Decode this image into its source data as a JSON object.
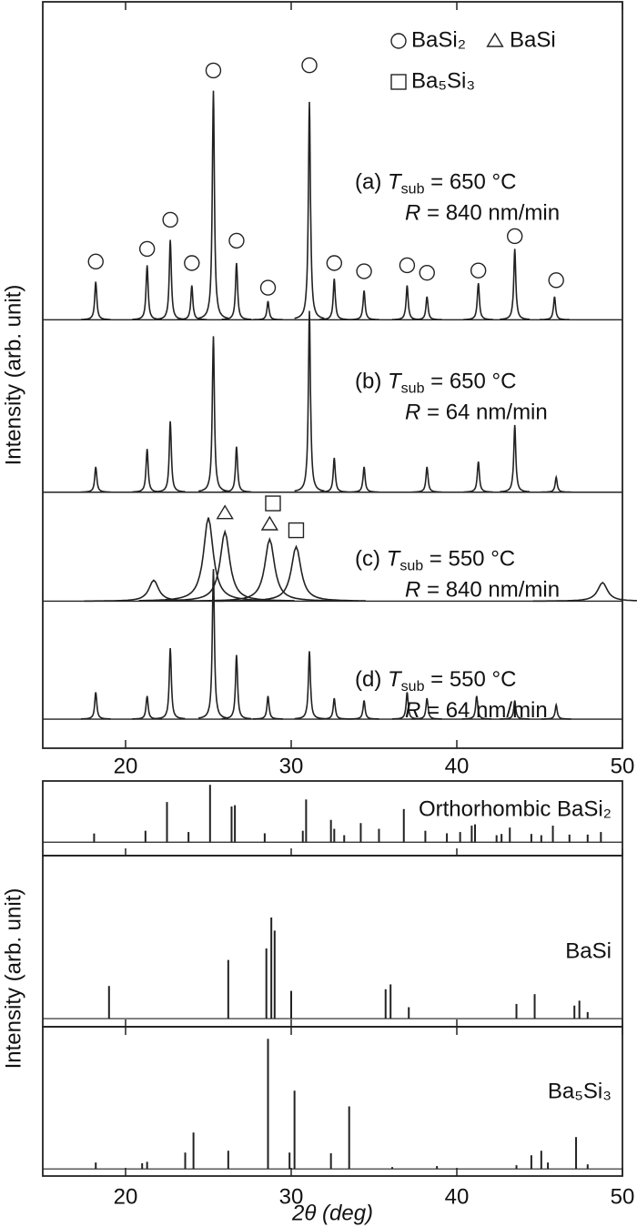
{
  "chart_data": [
    {
      "type": "peaks",
      "ylabel": "Intensity (arb. unit)",
      "xlim": [
        15,
        50
      ],
      "ylim": [
        0,
        100
      ],
      "xticks": [
        20,
        30,
        40,
        50
      ],
      "color": "#222222",
      "legend": [
        {
          "shape": "circle",
          "name": "BaSi₂"
        },
        {
          "shape": "triangle",
          "name": "BaSi"
        },
        {
          "shape": "square",
          "name": "Ba₅Si₃"
        }
      ],
      "series": [
        {
          "label": [
            "(a) ",
            "T",
            "sub",
            " = 650 °C"
          ],
          "label2": [
            "R",
            " = 840 nm/min"
          ],
          "baseline": 57.4,
          "width": 0.15,
          "x": [
            18.2,
            21.3,
            22.7,
            24.0,
            25.3,
            26.7,
            28.6,
            31.1,
            32.6,
            34.4,
            37.0,
            38.2,
            41.3,
            43.5,
            45.9
          ],
          "values": [
            62.5,
            64.7,
            68.1,
            62,
            88.1,
            65,
            59.9,
            86.6,
            62.9,
            61.3,
            62,
            60.5,
            62.3,
            66.9,
            60.5
          ]
        },
        {
          "label": [
            "(b) ",
            "T",
            "sub",
            " = 650 °C"
          ],
          "label2": [
            "R",
            " = 64 nm/min"
          ],
          "baseline": 34.3,
          "width": 0.15,
          "x": [
            18.2,
            21.3,
            22.7,
            25.3,
            26.7,
            31.1,
            32.6,
            34.4,
            38.2,
            41.3,
            43.5,
            46.0
          ],
          "values": [
            37.7,
            40.1,
            43.8,
            55.2,
            40.4,
            58.6,
            38.9,
            37.7,
            37.7,
            38.4,
            43.3,
            36.3
          ]
        },
        {
          "label": [
            "(c) ",
            "T",
            "sub",
            " = 550 °C"
          ],
          "label2": [
            "R",
            " = 840 nm/min"
          ],
          "baseline": 19.7,
          "width": 0.7,
          "x": [
            21.7,
            25.0,
            26.0,
            28.7,
            30.3,
            48.8
          ],
          "values": [
            22.5,
            30.9,
            29,
            28,
            27,
            22.2
          ]
        },
        {
          "label": [
            "(d) ",
            "T",
            "sub",
            " = 550 °C"
          ],
          "label2": [
            "R",
            " = 64 nm/min"
          ],
          "baseline": 3.9,
          "width": 0.15,
          "x": [
            18.2,
            21.3,
            22.7,
            25.3,
            26.7,
            28.6,
            31.1,
            32.6,
            34.4,
            37.0,
            38.2,
            41.2,
            43.5,
            46.0
          ],
          "values": [
            7.5,
            7,
            13.4,
            24,
            12.5,
            7,
            13,
            6.7,
            6.4,
            7.5,
            6.7,
            7,
            6.4,
            5.8
          ]
        }
      ],
      "markers": [
        {
          "shape": "circle",
          "x": 18.2,
          "y": 65.2
        },
        {
          "shape": "circle",
          "x": 21.3,
          "y": 66.9
        },
        {
          "shape": "circle",
          "x": 22.7,
          "y": 70.8
        },
        {
          "shape": "circle",
          "x": 24.0,
          "y": 65
        },
        {
          "shape": "circle",
          "x": 25.3,
          "y": 90.8
        },
        {
          "shape": "circle",
          "x": 26.7,
          "y": 68
        },
        {
          "shape": "circle",
          "x": 28.6,
          "y": 61.7
        },
        {
          "shape": "circle",
          "x": 31.1,
          "y": 91.5
        },
        {
          "shape": "circle",
          "x": 32.6,
          "y": 65
        },
        {
          "shape": "circle",
          "x": 34.4,
          "y": 63.9
        },
        {
          "shape": "circle",
          "x": 37.0,
          "y": 64.7
        },
        {
          "shape": "circle",
          "x": 38.2,
          "y": 63.7
        },
        {
          "shape": "circle",
          "x": 41.3,
          "y": 64
        },
        {
          "shape": "circle",
          "x": 43.5,
          "y": 68.6
        },
        {
          "shape": "circle",
          "x": 46.0,
          "y": 62.7
        },
        {
          "shape": "triangle",
          "x": 26.0,
          "y": 31.5
        },
        {
          "shape": "triangle",
          "x": 28.7,
          "y": 30
        },
        {
          "shape": "square",
          "x": 28.9,
          "y": 32.8
        },
        {
          "shape": "square",
          "x": 30.3,
          "y": 29.2
        }
      ]
    },
    {
      "type": "stick",
      "label": "Orthorhombic BaSi₂",
      "xlim": [
        15,
        50
      ],
      "ylim": [
        -21,
        96
      ],
      "color": "#222222",
      "x": [
        18.1,
        21.2,
        22.5,
        23.8,
        25.1,
        26.4,
        26.6,
        28.4,
        30.7,
        30.9,
        32.4,
        32.6,
        33.2,
        34.2,
        35.3,
        36.8,
        38.1,
        39.4,
        40.2,
        40.9,
        41.1,
        42.4,
        42.7,
        43.2,
        44.5,
        45.1,
        45.8,
        46.8,
        47.9,
        48.7
      ],
      "values": [
        13.7,
        18,
        63,
        16,
        90,
        56,
        58,
        14,
        18,
        67,
        35,
        21,
        11,
        30,
        21,
        52,
        18,
        14,
        16,
        26,
        28,
        11,
        13,
        23,
        13,
        11,
        26,
        12,
        12,
        16
      ]
    },
    {
      "type": "stick",
      "label": "BaSi",
      "ylabel": "Intensity (arb. unit)",
      "xlim": [
        15,
        50
      ],
      "ylim": [
        -5,
        100
      ],
      "color": "#222222",
      "x": [
        19.0,
        26.2,
        28.5,
        28.8,
        29.0,
        30.0,
        35.7,
        36.0,
        37.1,
        43.6,
        44.7,
        47.1,
        47.4,
        47.9
      ],
      "values": [
        20,
        36,
        43,
        62,
        54,
        17,
        18,
        21,
        7,
        9,
        15,
        8,
        11,
        4
      ]
    },
    {
      "type": "stick",
      "label": "Ba₅Si₃",
      "xlabel": "2θ (deg)",
      "xlim": [
        15,
        50
      ],
      "ylim": [
        -5,
        100
      ],
      "xticks": [
        20,
        30,
        40,
        50
      ],
      "color": "#222222",
      "x": [
        18.2,
        21.0,
        21.3,
        23.6,
        24.1,
        26.2,
        28.6,
        29.9,
        30.2,
        32.4,
        33.5,
        36.1,
        38.8,
        43.6,
        44.5,
        45.1,
        45.5,
        47.2,
        47.9
      ],
      "values": [
        4.5,
        4,
        5,
        11.5,
        25.6,
        12.8,
        91.5,
        11.5,
        55,
        11,
        44,
        1.3,
        2,
        2.6,
        9.6,
        12.8,
        4.5,
        22.4,
        3.2
      ]
    }
  ]
}
